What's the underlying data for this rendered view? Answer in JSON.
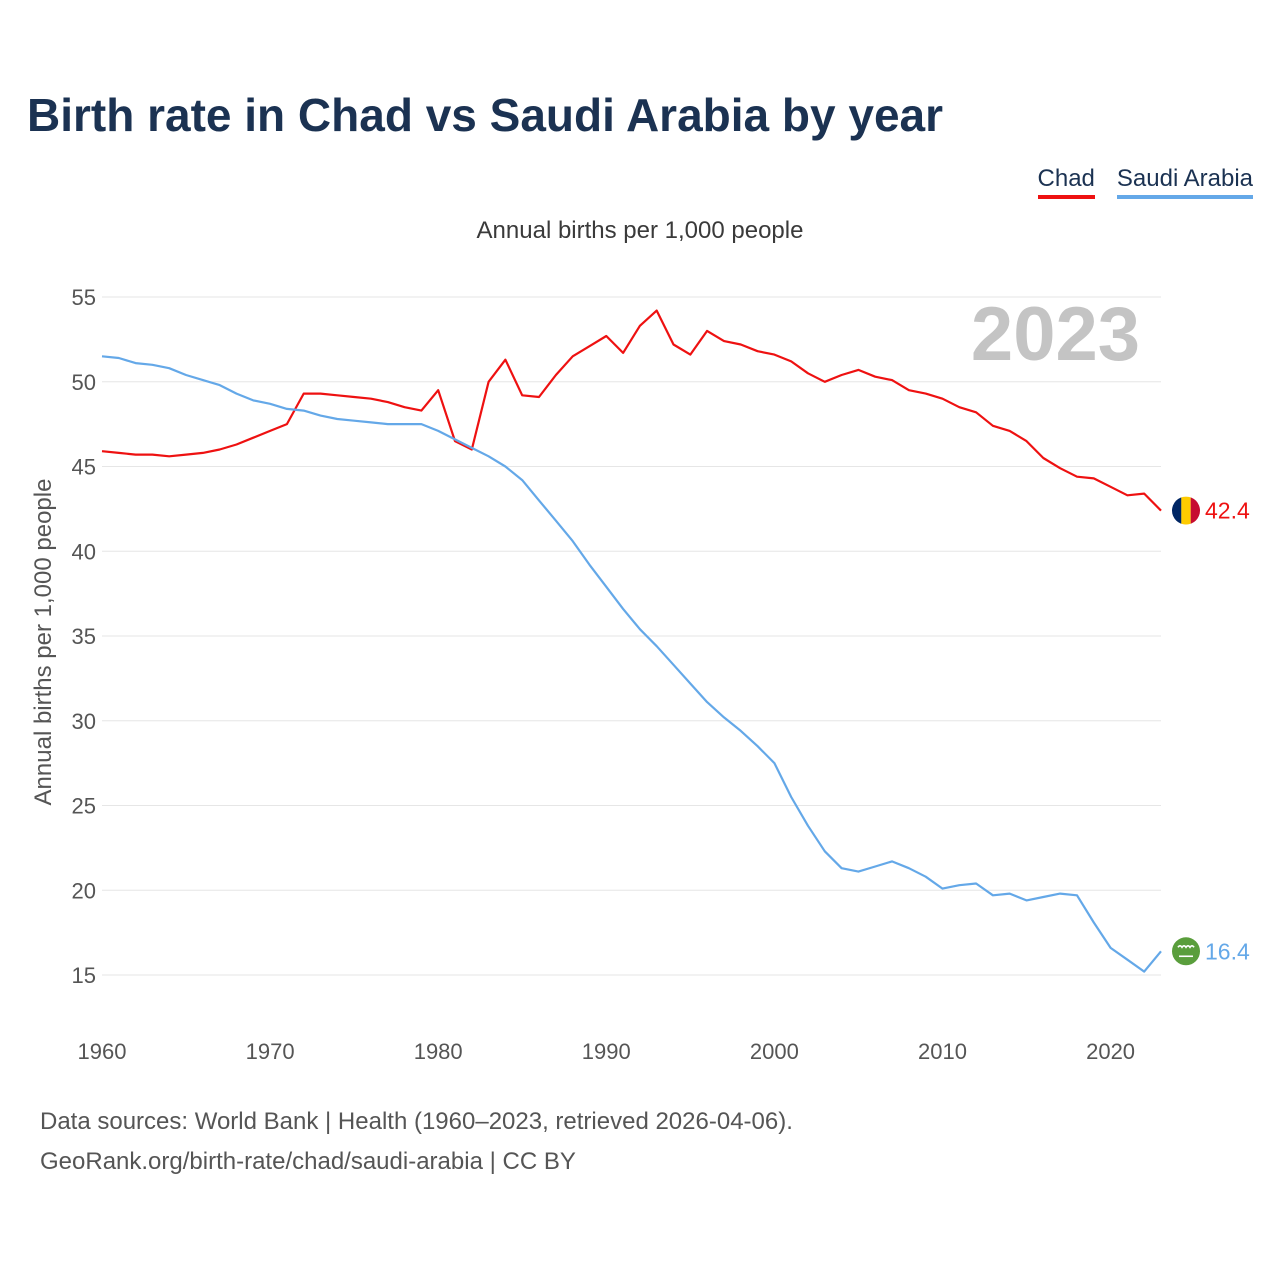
{
  "header": {
    "title": "Birth rate in Chad vs Saudi Arabia by year",
    "subtitle": "Annual births per 1,000 people"
  },
  "legend": {
    "items": [
      {
        "label": "Chad",
        "color": "#ee1111"
      },
      {
        "label": "Saudi Arabia",
        "color": "#64a8e8"
      }
    ]
  },
  "footer": {
    "source_line1": "Data sources: World Bank | Health (1960–2023, retrieved 2026-04-06).",
    "source_line2": "GeoRank.org/birth-rate/chad/saudi-arabia | CC BY"
  },
  "chart_data": {
    "type": "line",
    "title": "Birth rate in Chad vs Saudi Arabia by year",
    "subtitle": "Annual births per 1,000 people",
    "xlabel": "",
    "ylabel": "Annual births per 1,000 people",
    "year_watermark": "2023",
    "xlim": [
      1960,
      2023
    ],
    "ylim": [
      12.5,
      55
    ],
    "xticks": [
      1960,
      1970,
      1980,
      1990,
      2000,
      2010,
      2020
    ],
    "yticks": [
      15,
      20,
      25,
      30,
      35,
      40,
      45,
      50,
      55
    ],
    "grid": true,
    "legend_position": "top-right",
    "x": [
      1960,
      1961,
      1962,
      1963,
      1964,
      1965,
      1966,
      1967,
      1968,
      1969,
      1970,
      1971,
      1972,
      1973,
      1974,
      1975,
      1976,
      1977,
      1978,
      1979,
      1980,
      1981,
      1982,
      1983,
      1984,
      1985,
      1986,
      1987,
      1988,
      1989,
      1990,
      1991,
      1992,
      1993,
      1994,
      1995,
      1996,
      1997,
      1998,
      1999,
      2000,
      2001,
      2002,
      2003,
      2004,
      2005,
      2006,
      2007,
      2008,
      2009,
      2010,
      2011,
      2012,
      2013,
      2014,
      2015,
      2016,
      2017,
      2018,
      2019,
      2020,
      2021,
      2022,
      2023
    ],
    "series": [
      {
        "name": "Chad",
        "color": "#ee1111",
        "end_label": "42.4",
        "flag": "chad-flag",
        "values": [
          45.9,
          45.8,
          45.7,
          45.7,
          45.6,
          45.7,
          45.8,
          46.0,
          46.3,
          46.7,
          47.1,
          47.5,
          49.3,
          49.3,
          49.2,
          49.1,
          49.0,
          48.8,
          48.5,
          48.3,
          49.5,
          46.5,
          46.0,
          50.0,
          51.3,
          49.2,
          49.1,
          50.4,
          51.5,
          52.1,
          52.7,
          51.7,
          53.3,
          54.2,
          52.2,
          51.6,
          53.0,
          52.4,
          52.2,
          51.8,
          51.6,
          51.2,
          50.5,
          50.0,
          50.4,
          50.7,
          50.3,
          50.1,
          49.5,
          49.3,
          49.0,
          48.5,
          48.2,
          47.4,
          47.1,
          46.5,
          45.5,
          44.9,
          44.4,
          44.3,
          43.8,
          43.3,
          43.4,
          42.4
        ]
      },
      {
        "name": "Saudi Arabia",
        "color": "#64a8e8",
        "end_label": "16.4",
        "flag": "saudi-arabia-flag",
        "values": [
          51.5,
          51.4,
          51.1,
          51.0,
          50.8,
          50.4,
          50.1,
          49.8,
          49.3,
          48.9,
          48.7,
          48.4,
          48.3,
          48.0,
          47.8,
          47.7,
          47.6,
          47.5,
          47.5,
          47.5,
          47.1,
          46.6,
          46.1,
          45.6,
          45.0,
          44.2,
          43.0,
          41.8,
          40.6,
          39.2,
          37.9,
          36.6,
          35.4,
          34.4,
          33.3,
          32.2,
          31.1,
          30.2,
          29.4,
          28.5,
          27.5,
          25.5,
          23.8,
          22.3,
          21.3,
          21.1,
          21.4,
          21.7,
          21.3,
          20.8,
          20.1,
          20.3,
          20.4,
          19.7,
          19.8,
          19.4,
          19.6,
          19.8,
          19.7,
          18.1,
          16.6,
          15.9,
          15.2,
          16.4
        ]
      }
    ]
  }
}
